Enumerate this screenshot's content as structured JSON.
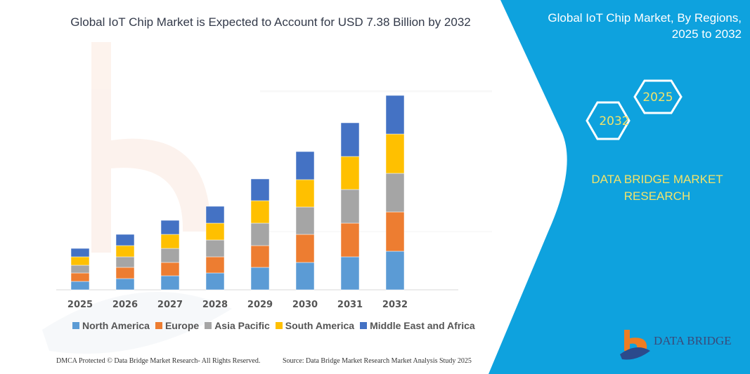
{
  "header": {
    "title": "Global IoT Chip Market is Expected to Account for USD 7.38 Billion by 2032",
    "side_title_line1": "Global IoT Chip Market, By Regions,",
    "side_title_line2": "2025 to 2032"
  },
  "hexagons": [
    "2032",
    "2025"
  ],
  "brand": {
    "line1": "DATA BRIDGE MARKET",
    "line2": "RESEARCH",
    "logo_text": "DATA BRIDGE"
  },
  "footer": {
    "left": "DMCA Protected © Data Bridge Market Research-  All Rights Reserved.",
    "right": "Source: Data Bridge Market Research  Market Analysis Study 2025"
  },
  "colors": {
    "panel": "#0ea2de",
    "accent_text": "#f2e36a"
  },
  "chart_data": {
    "type": "bar",
    "stacked": true,
    "categories": [
      "2025",
      "2026",
      "2027",
      "2028",
      "2029",
      "2030",
      "2031",
      "2032"
    ],
    "series": [
      {
        "name": "North America",
        "color": "#5b9bd5",
        "values": [
          12,
          16,
          20,
          24,
          32,
          39,
          47,
          55
        ]
      },
      {
        "name": "Europe",
        "color": "#ed7d31",
        "values": [
          12,
          16,
          19,
          23,
          31,
          40,
          48,
          56
        ]
      },
      {
        "name": "Asia Pacific",
        "color": "#a5a5a5",
        "values": [
          11,
          15,
          20,
          24,
          32,
          39,
          48,
          55
        ]
      },
      {
        "name": "South America",
        "color": "#ffc000",
        "values": [
          12,
          16,
          20,
          24,
          32,
          39,
          47,
          56
        ]
      },
      {
        "name": "Middle East and Africa",
        "color": "#4472c4",
        "values": [
          12,
          16,
          20,
          24,
          31,
          40,
          48,
          55
        ]
      }
    ],
    "ylim": [
      0,
      280
    ],
    "grid": false,
    "legend": "bottom",
    "y_axis_shown": false
  }
}
